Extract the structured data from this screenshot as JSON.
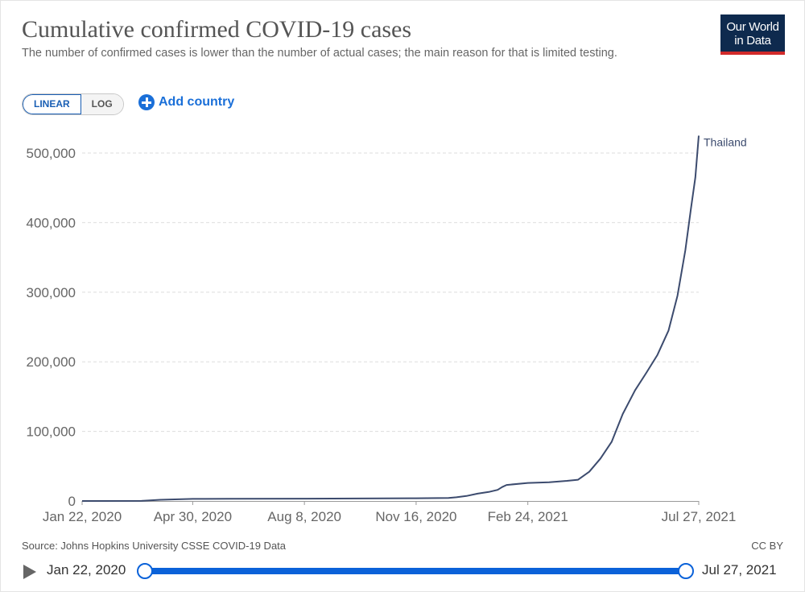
{
  "header": {
    "title": "Cumulative confirmed COVID-19 cases",
    "subtitle": "The number of confirmed cases is lower than the number of actual cases; the main reason for that is limited testing.",
    "logo_line1": "Our World",
    "logo_line2": "in Data"
  },
  "controls": {
    "linear_label": "LINEAR",
    "log_label": "LOG",
    "add_country_label": "Add country"
  },
  "footer": {
    "source": "Source: Johns Hopkins University CSSE COVID-19 Data",
    "license": "CC BY"
  },
  "timeline": {
    "start_label": "Jan 22, 2020",
    "end_label": "Jul 27, 2021"
  },
  "colors": {
    "series": "#3c4b6e",
    "grid": "#dddddd",
    "accent": "#1a6fd8",
    "logo_bg": "#0e2a4e",
    "logo_bar": "#d12a2a"
  },
  "chart_data": {
    "type": "line",
    "title": "Cumulative confirmed COVID-19 cases",
    "xlabel": "",
    "ylabel": "",
    "x_ticks": [
      "Jan 22, 2020",
      "Apr 30, 2020",
      "Aug 8, 2020",
      "Nov 16, 2020",
      "Feb 24, 2021",
      "Jul 27, 2021"
    ],
    "y_ticks": [
      "0",
      "100,000",
      "200,000",
      "300,000",
      "400,000",
      "500,000"
    ],
    "ylim": [
      0,
      500000
    ],
    "xlim": [
      "2020-01-22",
      "2021-07-27"
    ],
    "grid": "horizontal dashed",
    "series": [
      {
        "name": "Thailand",
        "points": [
          [
            "2020-01-22",
            4
          ],
          [
            "2020-03-15",
            114
          ],
          [
            "2020-04-01",
            1771
          ],
          [
            "2020-04-30",
            2954
          ],
          [
            "2020-06-01",
            3083
          ],
          [
            "2020-08-08",
            3330
          ],
          [
            "2020-11-16",
            3880
          ],
          [
            "2020-12-15",
            4300
          ],
          [
            "2020-12-22",
            5300
          ],
          [
            "2020-12-31",
            7200
          ],
          [
            "2021-01-10",
            10500
          ],
          [
            "2021-01-20",
            13000
          ],
          [
            "2021-01-28",
            16000
          ],
          [
            "2021-02-01",
            20000
          ],
          [
            "2021-02-05",
            23000
          ],
          [
            "2021-02-24",
            25900
          ],
          [
            "2021-03-15",
            27000
          ],
          [
            "2021-03-31",
            28900
          ],
          [
            "2021-04-10",
            30600
          ],
          [
            "2021-04-20",
            42000
          ],
          [
            "2021-04-30",
            61000
          ],
          [
            "2021-05-10",
            85000
          ],
          [
            "2021-05-20",
            125000
          ],
          [
            "2021-05-31",
            159000
          ],
          [
            "2021-06-10",
            184000
          ],
          [
            "2021-06-20",
            210000
          ],
          [
            "2021-06-30",
            245000
          ],
          [
            "2021-07-08",
            295000
          ],
          [
            "2021-07-15",
            360000
          ],
          [
            "2021-07-20",
            420000
          ],
          [
            "2021-07-24",
            465000
          ],
          [
            "2021-07-27",
            525000
          ]
        ]
      }
    ]
  }
}
